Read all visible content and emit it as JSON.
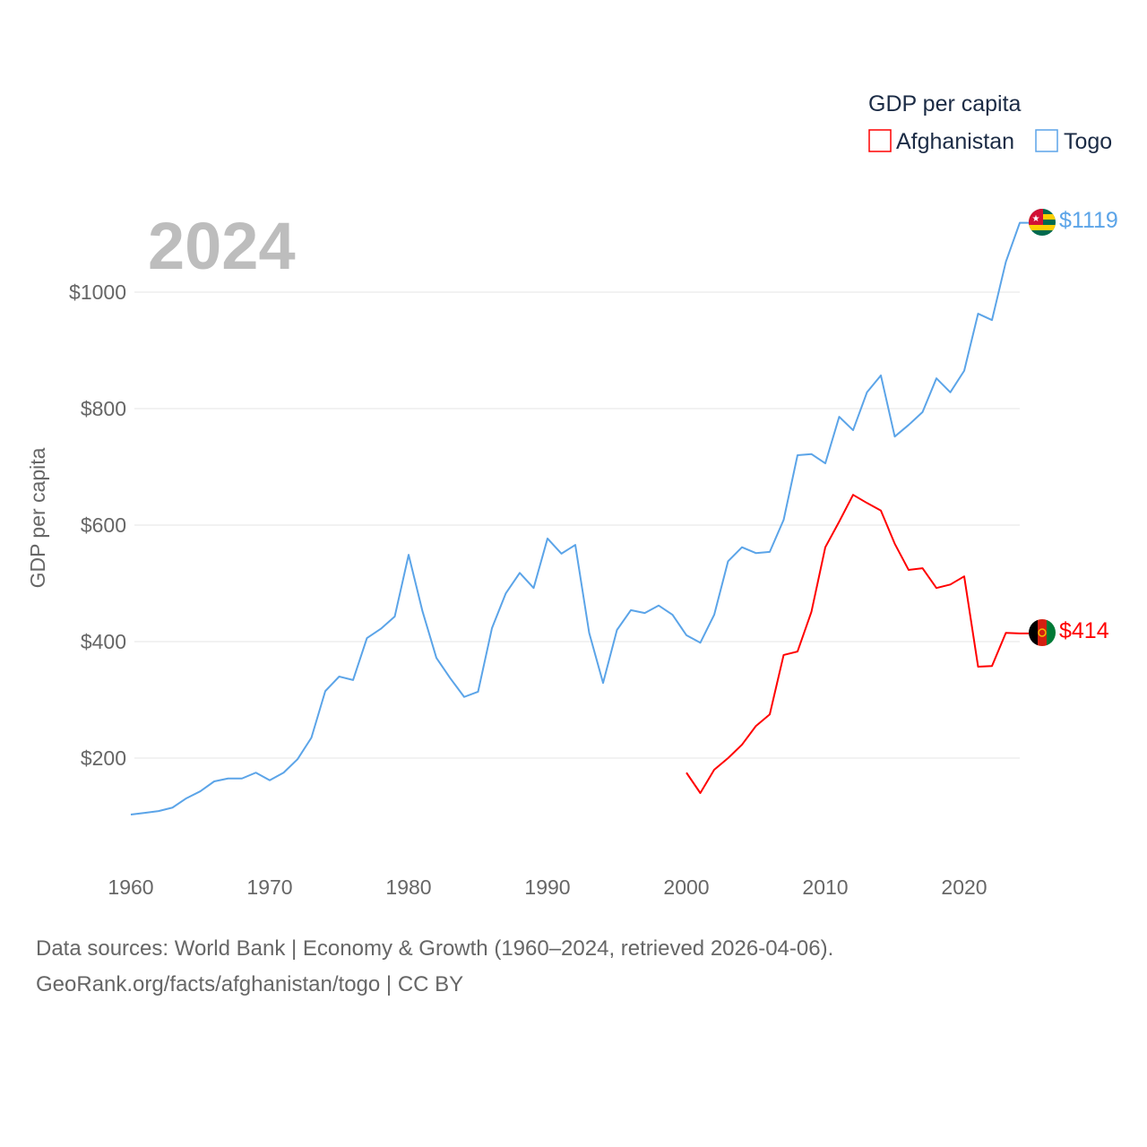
{
  "chart_data": {
    "type": "line",
    "title": "GDP per capita",
    "big_year_label": "2024",
    "ylabel": "GDP per capita",
    "xlabel": "",
    "xlim": [
      1960,
      2024
    ],
    "ylim": [
      0,
      1200
    ],
    "x_ticks": [
      "1960",
      "1970",
      "1980",
      "1990",
      "2000",
      "2010",
      "2020"
    ],
    "y_ticks": [
      {
        "value": 200,
        "label": "$200"
      },
      {
        "value": 400,
        "label": "$400"
      },
      {
        "value": 600,
        "label": "$600"
      },
      {
        "value": 800,
        "label": "$800"
      },
      {
        "value": 1000,
        "label": "$1000"
      }
    ],
    "grid": true,
    "legend_position": "top-right",
    "series": [
      {
        "name": "Afghanistan",
        "color": "#ff0000",
        "end_label": "$414",
        "flag": "afghanistan-flag",
        "x": [
          2000,
          2001,
          2002,
          2003,
          2004,
          2005,
          2006,
          2007,
          2008,
          2009,
          2010,
          2011,
          2012,
          2013,
          2014,
          2015,
          2016,
          2017,
          2018,
          2019,
          2020,
          2021,
          2022,
          2023,
          2024
        ],
        "values": [
          175,
          140,
          180,
          200,
          223,
          255,
          275,
          377,
          383,
          451,
          562,
          606,
          652,
          638,
          625,
          568,
          523,
          526,
          492,
          498,
          512,
          357,
          358,
          415,
          414
        ]
      },
      {
        "name": "Togo",
        "color": "#5ba4e8",
        "end_label": "$1119",
        "flag": "togo-flag",
        "x": [
          1960,
          1961,
          1962,
          1963,
          1964,
          1965,
          1966,
          1967,
          1968,
          1969,
          1970,
          1971,
          1972,
          1973,
          1974,
          1975,
          1976,
          1977,
          1978,
          1979,
          1980,
          1981,
          1982,
          1983,
          1984,
          1985,
          1986,
          1987,
          1988,
          1989,
          1990,
          1991,
          1992,
          1993,
          1994,
          1995,
          1996,
          1997,
          1998,
          1999,
          2000,
          2001,
          2002,
          2003,
          2004,
          2005,
          2006,
          2007,
          2008,
          2009,
          2010,
          2011,
          2012,
          2013,
          2014,
          2015,
          2016,
          2017,
          2018,
          2019,
          2020,
          2021,
          2022,
          2023,
          2024
        ],
        "values": [
          103,
          106,
          109,
          115,
          131,
          143,
          160,
          165,
          165,
          175,
          162,
          175,
          198,
          235,
          315,
          340,
          334,
          406,
          422,
          443,
          549,
          452,
          372,
          337,
          305,
          314,
          423,
          483,
          518,
          492,
          577,
          551,
          566,
          415,
          329,
          420,
          454,
          449,
          462,
          446,
          411,
          398,
          446,
          538,
          562,
          552,
          554,
          609,
          720,
          722,
          706,
          786,
          763,
          828,
          857,
          752,
          772,
          794,
          852,
          828,
          865,
          963,
          952,
          1052,
          1119
        ]
      }
    ]
  },
  "footer": {
    "line1": "Data sources: World Bank | Economy & Growth (1960–2024, retrieved 2026-04-06).",
    "line2": "GeoRank.org/facts/afghanistan/togo | CC BY"
  }
}
